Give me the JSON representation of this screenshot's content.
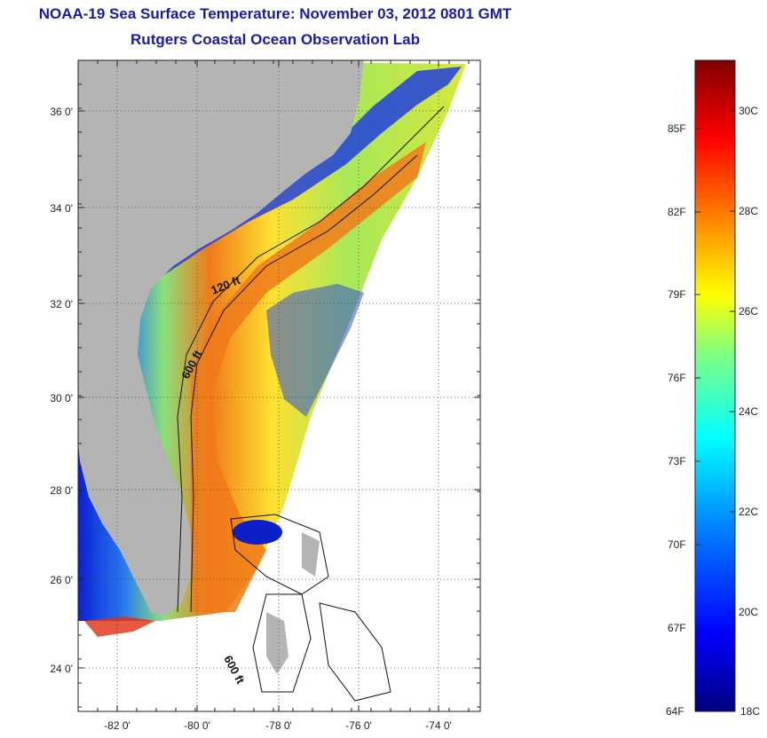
{
  "header": {
    "title": "NOAA-19 Sea Surface Temperature:  November 03, 2012 0801 GMT",
    "subtitle": "Rutgers Coastal Ocean Observation Lab"
  },
  "map": {
    "lat_ticks": [
      "36 0'",
      "34 0'",
      "32 0'",
      "30 0'",
      "28 0'",
      "26 0'",
      "24 0'"
    ],
    "lon_ticks": [
      "-82 0'",
      "-80 0'",
      "-78 0'",
      "-76 0'",
      "-74 0'"
    ],
    "contour_labels": [
      "120 ft",
      "600 ft",
      "600 ft"
    ],
    "colors": {
      "land": "#b4b4b4",
      "no_data": "#ffffff"
    }
  },
  "colorbar": {
    "min_f": "64F",
    "min_c": "18C",
    "fahrenheit_labels": [
      "85F",
      "82F",
      "79F",
      "76F",
      "73F",
      "70F",
      "67F"
    ],
    "celsius_labels": [
      "30C",
      "28C",
      "26C",
      "24C",
      "22C",
      "20C"
    ],
    "colormap": [
      "#00007f",
      "#0000ff",
      "#0080ff",
      "#00ffff",
      "#80ff80",
      "#ffff00",
      "#ff8000",
      "#ff0000",
      "#7f0000"
    ]
  }
}
